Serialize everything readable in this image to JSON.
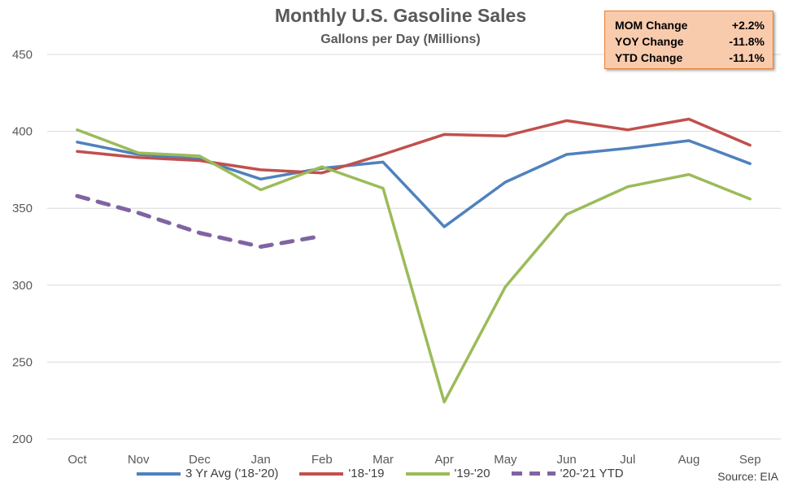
{
  "header": {
    "title": "Monthly U.S. Gasoline Sales",
    "subtitle": "Gallons per Day (Millions)"
  },
  "stats": [
    {
      "label": "MOM Change",
      "value": "+2.2%"
    },
    {
      "label": "YOY Change",
      "value": "-11.8%"
    },
    {
      "label": "YTD Change",
      "value": "-11.1%"
    }
  ],
  "source": "Source: EIA",
  "chart_data": {
    "type": "line",
    "title": "Monthly U.S. Gasoline Sales",
    "subtitle": "Gallons per Day (Millions)",
    "categories": [
      "Oct",
      "Nov",
      "Dec",
      "Jan",
      "Feb",
      "Mar",
      "Apr",
      "May",
      "Jun",
      "Jul",
      "Aug",
      "Sep"
    ],
    "ylim": [
      200,
      450
    ],
    "yticks": [
      200,
      250,
      300,
      350,
      400,
      450
    ],
    "grid": true,
    "legend_position": "bottom",
    "series": [
      {
        "name": "3 Yr Avg ('18-'20)",
        "color": "#4f81bd",
        "dashed": false,
        "values": [
          393,
          385,
          382,
          369,
          376,
          380,
          338,
          367,
          385,
          389,
          394,
          379
        ]
      },
      {
        "name": "'18-'19",
        "color": "#c0504d",
        "dashed": false,
        "values": [
          387,
          383,
          381,
          375,
          373,
          385,
          398,
          397,
          407,
          401,
          408,
          391
        ]
      },
      {
        "name": "'19-'20",
        "color": "#9bbb59",
        "dashed": false,
        "values": [
          401,
          386,
          384,
          362,
          377,
          363,
          224,
          299,
          346,
          364,
          372,
          356
        ]
      },
      {
        "name": "'20-'21 YTD",
        "color": "#8064a2",
        "dashed": true,
        "values": [
          358,
          347,
          334,
          325,
          332,
          null,
          null,
          null,
          null,
          null,
          null,
          null
        ]
      }
    ]
  }
}
